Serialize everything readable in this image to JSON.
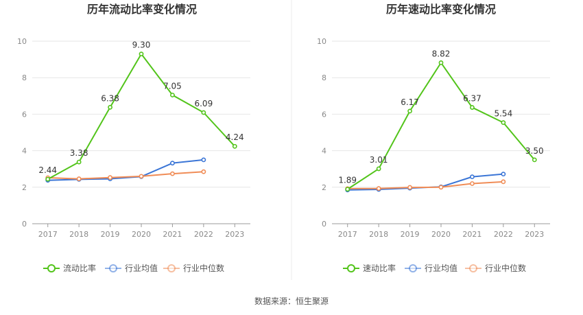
{
  "chart_data": [
    {
      "type": "line",
      "title": "历年流动比率变化情况",
      "categories": [
        "2017",
        "2018",
        "2019",
        "2020",
        "2021",
        "2022",
        "2023"
      ],
      "ylim": [
        0,
        10
      ],
      "yticks": [
        "0",
        "2",
        "4",
        "6",
        "8",
        "10"
      ],
      "grid": true,
      "legend_position": "bottom",
      "series": [
        {
          "name": "流动比率",
          "color": "#52c41a",
          "values": [
            2.44,
            3.38,
            6.38,
            9.3,
            7.05,
            6.09,
            4.24
          ],
          "labels": [
            "2.44",
            "3.38",
            "6.38",
            "9.30",
            "7.05",
            "6.09",
            "4.24"
          ]
        },
        {
          "name": "行业均值",
          "color": "#3a75d6",
          "values": [
            2.38,
            2.43,
            2.46,
            2.58,
            3.32,
            3.5,
            null
          ]
        },
        {
          "name": "行业中位数",
          "color": "#f08c56",
          "values": [
            2.52,
            2.46,
            2.53,
            2.6,
            2.74,
            2.85,
            null
          ]
        }
      ]
    },
    {
      "type": "line",
      "title": "历年速动比率变化情况",
      "categories": [
        "2017",
        "2018",
        "2019",
        "2020",
        "2021",
        "2022",
        "2023"
      ],
      "ylim": [
        0,
        10
      ],
      "yticks": [
        "0",
        "2",
        "4",
        "6",
        "8",
        "10"
      ],
      "grid": true,
      "legend_position": "bottom",
      "series": [
        {
          "name": "速动比率",
          "color": "#52c41a",
          "values": [
            1.89,
            3.01,
            6.17,
            8.82,
            6.37,
            5.54,
            3.5
          ],
          "labels": [
            "1.89",
            "3.01",
            "6.17",
            "8.82",
            "6.37",
            "5.54",
            "3.50"
          ]
        },
        {
          "name": "行业均值",
          "color": "#3a75d6",
          "values": [
            1.85,
            1.88,
            1.95,
            2.02,
            2.57,
            2.72,
            null
          ]
        },
        {
          "name": "行业中位数",
          "color": "#f08c56",
          "values": [
            1.92,
            1.93,
            1.99,
            2.0,
            2.2,
            2.3,
            null
          ]
        }
      ]
    }
  ],
  "source": "数据来源：恒生聚源"
}
